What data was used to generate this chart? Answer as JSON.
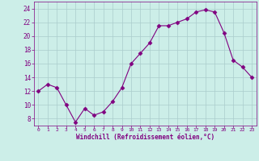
{
  "x": [
    0,
    1,
    2,
    3,
    4,
    5,
    6,
    7,
    8,
    9,
    10,
    11,
    12,
    13,
    14,
    15,
    16,
    17,
    18,
    19,
    20,
    21,
    22,
    23
  ],
  "y": [
    12,
    13,
    12.5,
    10,
    7.5,
    9.5,
    8.5,
    9,
    10.5,
    12.5,
    16,
    17.5,
    19,
    21.5,
    21.5,
    22,
    22.5,
    23.5,
    23.8,
    23.5,
    20.5,
    16.5,
    15.5,
    14
  ],
  "line_color": "#800080",
  "marker": "D",
  "marker_size": 2.5,
  "bg_color": "#cceee8",
  "grid_color": "#aacccc",
  "xlabel": "Windchill (Refroidissement éolien,°C)",
  "xlabel_color": "#800080",
  "tick_color": "#800080",
  "spine_color": "#800080",
  "ylim": [
    7,
    25
  ],
  "xlim": [
    -0.5,
    23.5
  ],
  "yticks": [
    8,
    10,
    12,
    14,
    16,
    18,
    20,
    22,
    24
  ],
  "xticks": [
    0,
    1,
    2,
    3,
    4,
    5,
    6,
    7,
    8,
    9,
    10,
    11,
    12,
    13,
    14,
    15,
    16,
    17,
    18,
    19,
    20,
    21,
    22,
    23
  ]
}
